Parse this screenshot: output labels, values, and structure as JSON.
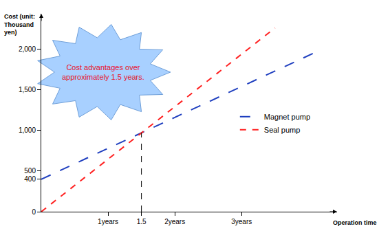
{
  "chart_data": {
    "type": "line",
    "y_label": [
      "Cost (unit:",
      "Thousand",
      "yen)"
    ],
    "x_label": "Operation time",
    "annotation": [
      "Cost advantages over",
      "approximately 1.5 years."
    ],
    "xlim": [
      0,
      4.43
    ],
    "ylim": [
      0,
      2440
    ],
    "xticks": [
      {
        "value": 1,
        "label": "1years"
      },
      1.5,
      {
        "value": 2,
        "label": "2years"
      },
      {
        "value": 3,
        "label": "3years"
      }
    ],
    "yticks": [
      0,
      400,
      500,
      {
        "value": 1000,
        "label": "1,000"
      },
      {
        "value": 1500,
        "label": "1,500"
      },
      {
        "value": 2000,
        "label": "2,000"
      }
    ],
    "series": [
      {
        "name": "Magnet pump",
        "color": "#1f3fbf",
        "line_style": "longdash",
        "x": [
          0,
          4.2
        ],
        "values": [
          400,
          2000
        ]
      },
      {
        "name": "Seal pump",
        "color": "#ff2020",
        "line_style": "dash",
        "x": [
          0,
          3.5
        ],
        "values": [
          0,
          2265
        ]
      }
    ],
    "crossover": {
      "x": 1.5,
      "y": 971
    },
    "legend": "right",
    "grid": false
  }
}
